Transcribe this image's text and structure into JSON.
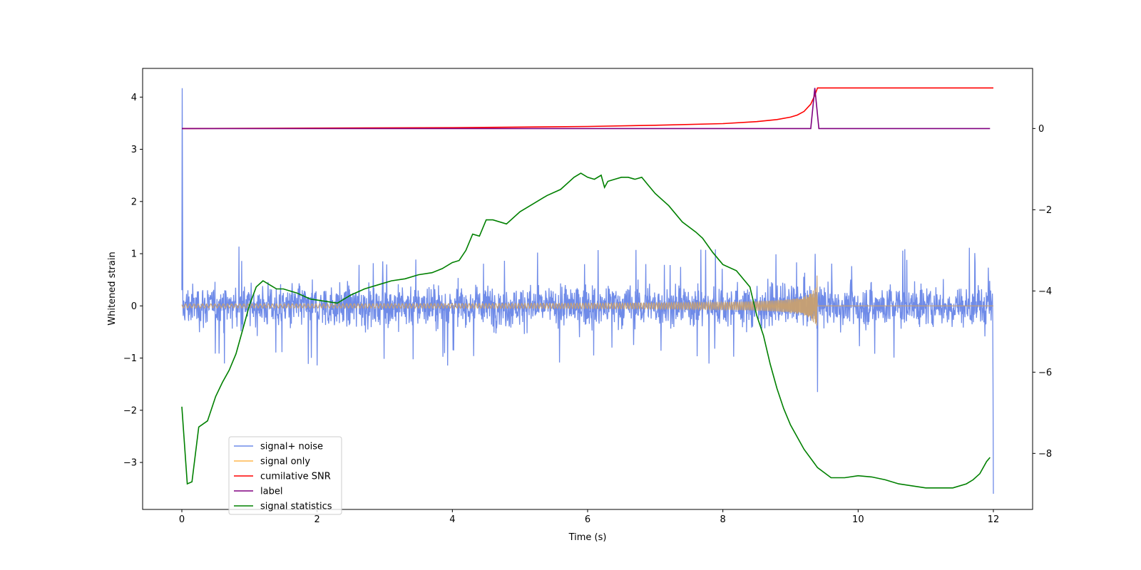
{
  "chart_data": {
    "type": "line",
    "xlabel": "Time (s)",
    "ylabel": "Whitened strain",
    "xlim": [
      -0.58,
      12.58
    ],
    "ylim": [
      -3.9,
      4.55
    ],
    "y2lim": [
      -9.38,
      1.48
    ],
    "xticks": [
      0,
      2,
      4,
      6,
      8,
      10,
      12
    ],
    "yticks": [
      -3,
      -2,
      -1,
      0,
      1,
      2,
      3,
      4
    ],
    "y2ticks": [
      -8,
      -6,
      -4,
      -2,
      0
    ],
    "grid": false,
    "legend_position": "lower-left",
    "colors": {
      "signal_plus_noise": "#6f8be8",
      "signal_only": "#ffb74d",
      "cumulative_snr": "#ff0000",
      "label": "#800080",
      "signal_statistics": "#008000"
    },
    "series": [
      {
        "name": "signal+ noise",
        "axis": "left",
        "description_values": {
          "amplitude_range": [
            -1.25,
            1.2
          ],
          "start_spike": 4.17,
          "spike_at_9_4": [
            -1.65,
            0.7
          ],
          "end_spike": -3.6
        },
        "x_range": [
          0,
          12
        ]
      },
      {
        "name": "signal only",
        "axis": "left",
        "chirp_end": 9.4,
        "chirp_peak_amplitude": 0.7,
        "x_range": [
          0,
          12
        ]
      },
      {
        "name": "cumilative SNR",
        "axis": "right",
        "x": [
          0,
          2,
          4,
          6,
          7,
          8,
          8.5,
          8.8,
          9.0,
          9.1,
          9.2,
          9.3,
          9.35,
          9.4,
          12
        ],
        "y": [
          0.0,
          0.01,
          0.02,
          0.05,
          0.08,
          0.12,
          0.17,
          0.22,
          0.28,
          0.33,
          0.42,
          0.6,
          0.78,
          1.0,
          1.0
        ]
      },
      {
        "name": "label",
        "axis": "right",
        "x": [
          0,
          9.3,
          9.36,
          9.42,
          11.95
        ],
        "y": [
          0,
          0,
          1.0,
          0,
          0
        ]
      },
      {
        "name": "signal statistics",
        "axis": "right",
        "x": [
          0,
          0.08,
          0.15,
          0.25,
          0.38,
          0.5,
          0.6,
          0.7,
          0.8,
          0.9,
          1.0,
          1.1,
          1.2,
          1.3,
          1.4,
          1.5,
          1.7,
          1.9,
          2.1,
          2.3,
          2.5,
          2.7,
          2.9,
          3.1,
          3.3,
          3.5,
          3.7,
          3.85,
          4.0,
          4.1,
          4.2,
          4.3,
          4.4,
          4.5,
          4.6,
          4.8,
          5.0,
          5.2,
          5.4,
          5.6,
          5.8,
          5.9,
          6.0,
          6.1,
          6.2,
          6.25,
          6.3,
          6.4,
          6.5,
          6.6,
          6.7,
          6.8,
          6.9,
          7.0,
          7.2,
          7.4,
          7.6,
          7.7,
          7.85,
          8.0,
          8.2,
          8.4,
          8.5,
          8.6,
          8.7,
          8.8,
          8.9,
          9.0,
          9.2,
          9.4,
          9.6,
          9.8,
          10.0,
          10.2,
          10.4,
          10.6,
          10.8,
          11.0,
          11.2,
          11.4,
          11.6,
          11.7,
          11.8,
          11.9,
          11.95
        ],
        "y": [
          -6.85,
          -8.75,
          -8.7,
          -7.35,
          -7.2,
          -6.6,
          -6.25,
          -5.95,
          -5.55,
          -4.95,
          -4.35,
          -3.9,
          -3.75,
          -3.85,
          -3.95,
          -3.95,
          -4.05,
          -4.2,
          -4.25,
          -4.3,
          -4.1,
          -3.95,
          -3.85,
          -3.75,
          -3.7,
          -3.6,
          -3.55,
          -3.45,
          -3.3,
          -3.25,
          -3.0,
          -2.6,
          -2.65,
          -2.25,
          -2.25,
          -2.35,
          -2.05,
          -1.85,
          -1.65,
          -1.5,
          -1.2,
          -1.1,
          -1.2,
          -1.25,
          -1.15,
          -1.45,
          -1.3,
          -1.25,
          -1.2,
          -1.2,
          -1.25,
          -1.2,
          -1.4,
          -1.6,
          -1.9,
          -2.3,
          -2.55,
          -2.7,
          -3.05,
          -3.35,
          -3.5,
          -3.9,
          -4.6,
          -5.1,
          -5.8,
          -6.4,
          -6.9,
          -7.3,
          -7.9,
          -8.35,
          -8.6,
          -8.6,
          -8.55,
          -8.58,
          -8.65,
          -8.75,
          -8.8,
          -8.85,
          -8.85,
          -8.85,
          -8.75,
          -8.65,
          -8.5,
          -8.2,
          -8.1
        ]
      }
    ],
    "legend": [
      {
        "key": "signal_plus_noise",
        "label": "signal+ noise"
      },
      {
        "key": "signal_only",
        "label": "signal only"
      },
      {
        "key": "cumulative_snr",
        "label": "cumilative SNR"
      },
      {
        "key": "label",
        "label": "label"
      },
      {
        "key": "signal_statistics",
        "label": "signal statistics"
      }
    ]
  }
}
